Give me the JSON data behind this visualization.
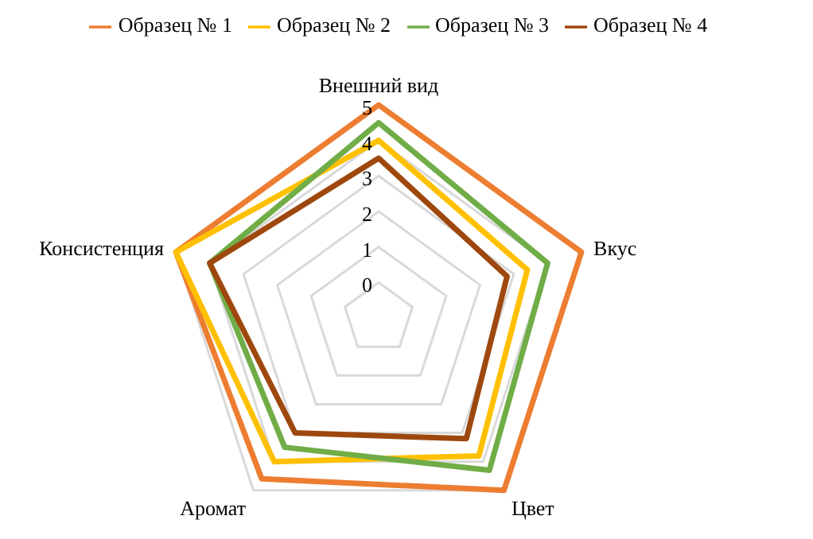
{
  "chart_data": {
    "type": "radar",
    "categories": [
      "Внешний вид",
      "Вкус",
      "Цвет",
      "Аромат",
      "Консистенция"
    ],
    "series": [
      {
        "name": "Образец № 1",
        "color": "#ed7d31",
        "values": [
          5,
          5,
          5,
          4.6,
          5
        ]
      },
      {
        "name": "Образец № 2",
        "color": "#ffc000",
        "values": [
          4,
          3.4,
          3.8,
          4,
          5
        ]
      },
      {
        "name": "Образец № 3",
        "color": "#70ad47",
        "values": [
          4.5,
          4,
          4.3,
          3.5,
          4
        ]
      },
      {
        "name": "Образец № 4",
        "color": "#9e480e",
        "values": [
          3.5,
          2.8,
          3.2,
          3,
          4
        ]
      }
    ],
    "ylim": [
      -1,
      5
    ],
    "yticks": [
      0,
      1,
      2,
      3,
      4,
      5
    ],
    "grid": true,
    "legend": "top",
    "marker": "none"
  }
}
